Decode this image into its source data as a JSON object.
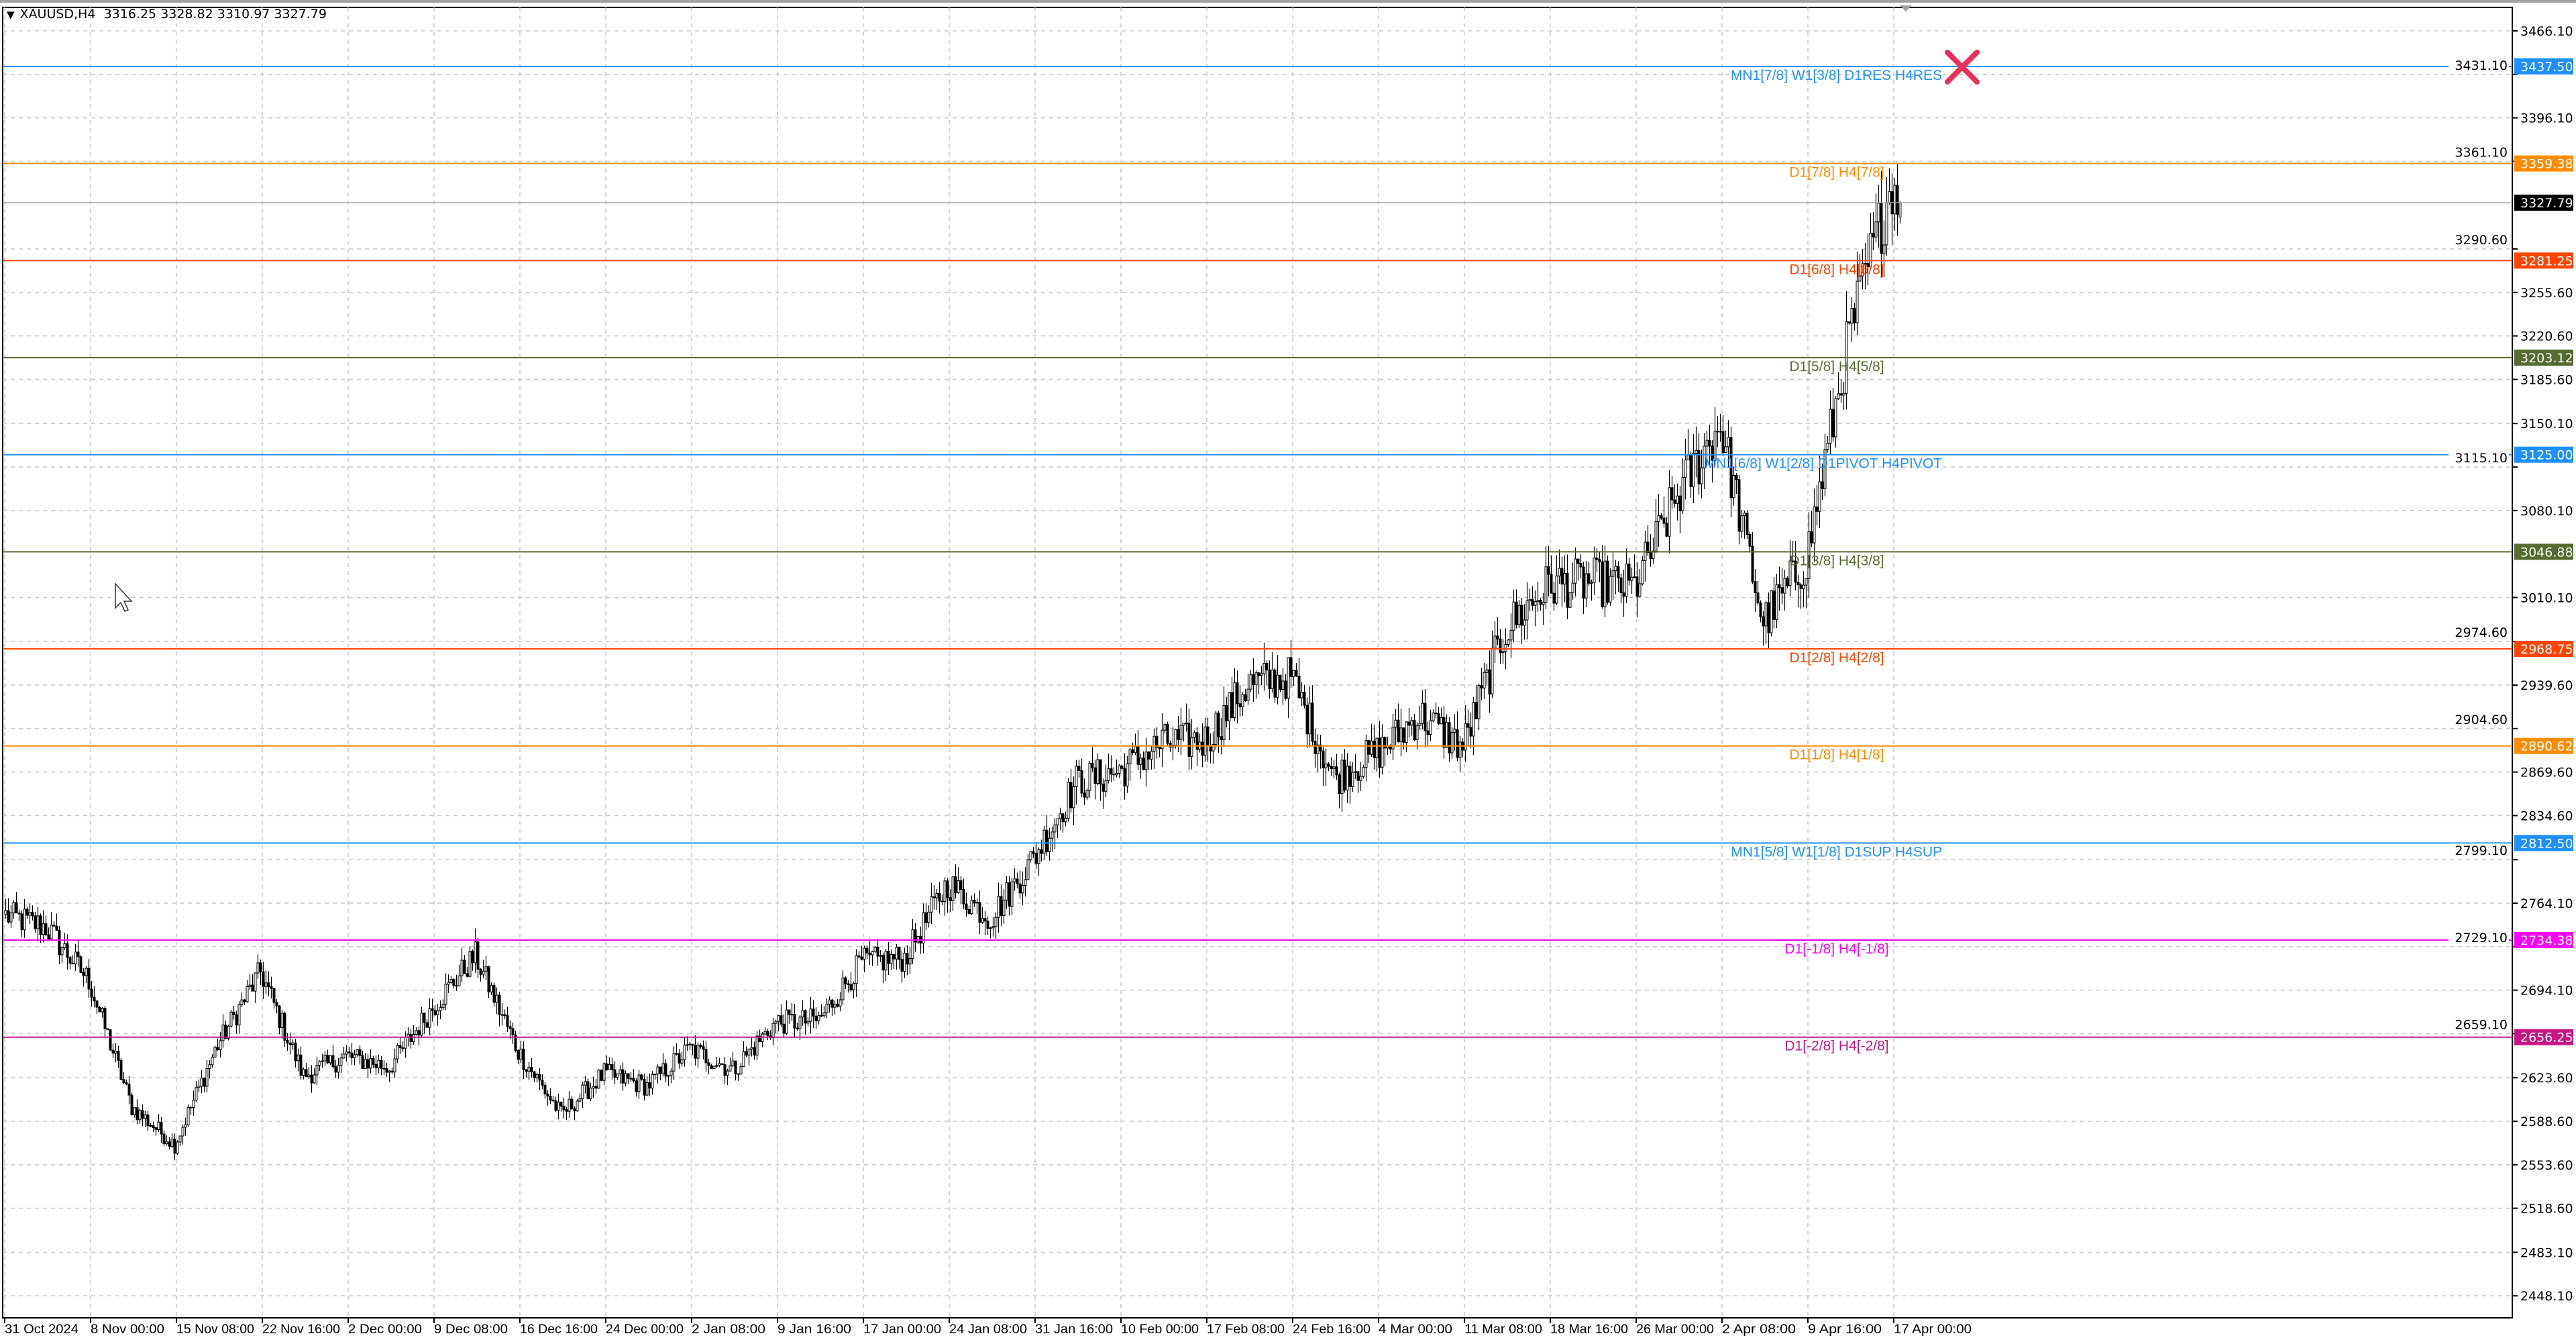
{
  "header": {
    "symbol": "XAUUSD,H4",
    "ohlc": "3316.25 3328.82 3310.97 3327.79",
    "menu_icon": "triangle-down-icon"
  },
  "chart_data": {
    "type": "candlestick",
    "symbol": "XAUUSD",
    "timeframe": "H4",
    "last_ohlc": {
      "open": 3316.25,
      "high": 3328.82,
      "low": 3310.97,
      "close": 3327.79
    },
    "ylim": [
      2430,
      3480
    ],
    "grid": true,
    "y_ticks": [
      "3466.10",
      "3431.10",
      "3396.10",
      "3361.10",
      "3327.79",
      "3290.60",
      "3255.60",
      "3220.60",
      "3185.60",
      "3150.10",
      "3115.10",
      "3080.10",
      "3010.10",
      "2974.60",
      "2939.60",
      "2904.60",
      "2869.60",
      "2834.60",
      "2799.10",
      "2764.10",
      "2729.10",
      "2694.10",
      "2659.10",
      "2623.60",
      "2588.60",
      "2553.60",
      "2518.60",
      "2483.10",
      "2448.10"
    ],
    "x_ticks": [
      "31 Oct 2024",
      "8 Nov 00:00",
      "15 Nov 08:00",
      "22 Nov 16:00",
      "2 Dec 00:00",
      "9 Dec 08:00",
      "16 Dec 16:00",
      "24 Dec 00:00",
      "2 Jan 08:00",
      "9 Jan 16:00",
      "17 Jan 00:00",
      "24 Jan 08:00",
      "31 Jan 16:00",
      "10 Feb 00:00",
      "17 Feb 08:00",
      "24 Feb 16:00",
      "4 Mar 00:00",
      "11 Mar 08:00",
      "18 Mar 16:00",
      "26 Mar 00:00",
      "2 Apr 08:00",
      "9 Apr 16:00",
      "17 Apr 00:00"
    ],
    "approx_closes_twice_per_x_tick": [
      2755,
      2745,
      2702,
      2600,
      2570,
      2650,
      2709,
      2625,
      2641,
      2632,
      2680,
      2722,
      2645,
      2594,
      2627,
      2617,
      2647,
      2630,
      2668,
      2670,
      2717,
      2720,
      2780,
      2752,
      2800,
      2861,
      2870,
      2893,
      2895,
      2940,
      2946,
      2865,
      2885,
      2915,
      2890,
      2985,
      3020,
      3023,
      3018,
      3092,
      3150,
      2990,
      3040,
      3220,
      3345,
      3327.79
    ],
    "current_price": {
      "value": "3327.79",
      "color": "#000000"
    },
    "levels": [
      {
        "price": 3437.5,
        "tag": "3437.50",
        "label": "MN1[7/8] W1[3/8] D1RES H4RES",
        "color": "#1e90ff",
        "align": "right"
      },
      {
        "price": 3359.38,
        "tag": "3359.38",
        "label": "D1[7/8] H4[7/8]",
        "color": "#ff8c00",
        "align": "center"
      },
      {
        "price": 3281.25,
        "tag": "3281.25",
        "label": "D1[6/8] H4[6/8]",
        "color": "#ff4500",
        "align": "center"
      },
      {
        "price": 3203.12,
        "tag": "3203.12",
        "label": "D1[5/8] H4[5/8]",
        "color": "#556b2f",
        "align": "center"
      },
      {
        "price": 3125.0,
        "tag": "3125.00",
        "label": "MN1[6/8] W1[2/8] D1PIVOT H4PIVOT",
        "color": "#1e90ff",
        "align": "right"
      },
      {
        "price": 3046.88,
        "tag": "3046.88",
        "label": "D1[3/8] H4[3/8]",
        "color": "#556b2f",
        "align": "center"
      },
      {
        "price": 2968.75,
        "tag": "2968.75",
        "label": "D1[2/8] H4[2/8]",
        "color": "#ff4500",
        "align": "center"
      },
      {
        "price": 2890.62,
        "tag": "2890.62",
        "label": "D1[1/8] H4[1/8]",
        "color": "#ff8c00",
        "align": "center"
      },
      {
        "price": 2812.5,
        "tag": "2812.50",
        "label": "MN1[5/8] W1[1/8] D1SUP H4SUP",
        "color": "#1e90ff",
        "align": "right"
      },
      {
        "price": 2734.38,
        "tag": "2734.38",
        "label": "D1[-1/8] H4[-1/8]",
        "color": "#ff00ff",
        "align": "center"
      },
      {
        "price": 2656.25,
        "tag": "2656.25",
        "label": "D1[-2/8] H4[-2/8]",
        "color": "#c71585",
        "align": "center"
      }
    ]
  },
  "overlays": {
    "close_marker_icon": "x-mark-icon",
    "close_marker_color": "#e8305a",
    "cursor_icon": "mouse-pointer-icon",
    "shift_marker_icon": "triangle-down-icon"
  }
}
